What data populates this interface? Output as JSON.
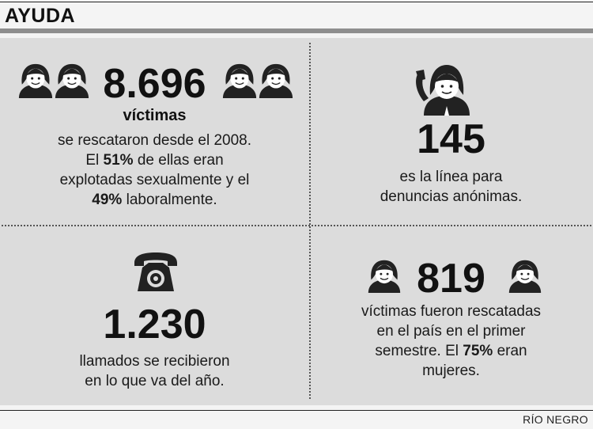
{
  "header": {
    "title": "AYUDA"
  },
  "q1": {
    "number": "8.696",
    "subtitle": "víctimas",
    "l1": "se rescataron desde el 2008.",
    "l2a": "El ",
    "l2b": "51%",
    "l2c": " de ellas eran",
    "l3": "explotadas sexualmente y el",
    "l4a": "49%",
    "l4b": " laboralmente.",
    "icons": [
      "woman-icon",
      "woman-icon",
      "woman-icon",
      "woman-icon"
    ]
  },
  "q2": {
    "number": "145",
    "l1": "es la línea para",
    "l2": "denuncias anónimas.",
    "icon": "operator-headset-icon"
  },
  "q3": {
    "number": "1.230",
    "l1": "llamados se recibieron",
    "l2": "en lo que va del año.",
    "icon": "telephone-icon"
  },
  "q4": {
    "number": "819",
    "l1": "víctimas fueron rescatadas",
    "l2": "en el país en el primer",
    "l3a": "semestre. El ",
    "l3b": "75%",
    "l3c": " eran",
    "l4": "mujeres.",
    "icons": [
      "woman-icon",
      "woman-icon"
    ]
  },
  "footer": {
    "credit": "RÍO NEGRO"
  },
  "colors": {
    "panel": "#dcdcdc",
    "bar": "#8e8e8e",
    "ink": "#111111"
  }
}
